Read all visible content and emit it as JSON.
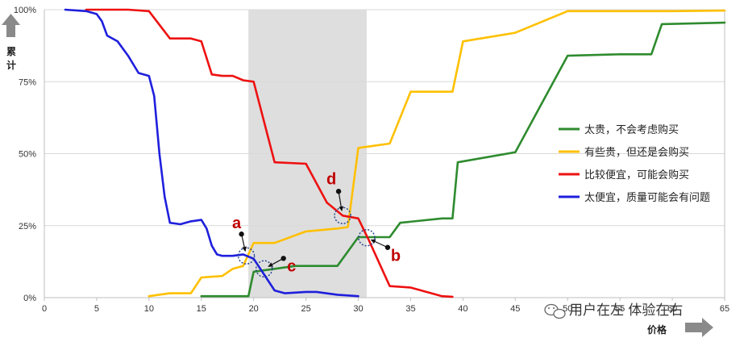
{
  "chart_data": {
    "type": "line",
    "title": "",
    "xlabel": "价格",
    "ylabel": "累计",
    "xlim": [
      0,
      65
    ],
    "ylim": [
      0,
      100
    ],
    "x_ticks": [
      0,
      5,
      10,
      15,
      20,
      25,
      30,
      35,
      40,
      45,
      50,
      55,
      60,
      65
    ],
    "x_tick_labels": [
      "0",
      "5",
      "10",
      "15",
      "20",
      "25",
      "30",
      "35",
      "40",
      "45",
      "50",
      "55",
      "60",
      "65"
    ],
    "y_ticks": [
      0,
      25,
      50,
      75,
      100
    ],
    "y_tick_labels": [
      "0%",
      "25%",
      "50%",
      "75%",
      "100%"
    ],
    "shaded_range": [
      19.5,
      30.8
    ],
    "legend_position": "right",
    "series": [
      {
        "name": "太贵，不会考虑购买",
        "color": "#2e8b2e",
        "points": [
          [
            15,
            0.5
          ],
          [
            19.5,
            0.5
          ],
          [
            20,
            9
          ],
          [
            22,
            10
          ],
          [
            24,
            11
          ],
          [
            28,
            11
          ],
          [
            30,
            21
          ],
          [
            33,
            21
          ],
          [
            34,
            26
          ],
          [
            38,
            27.5
          ],
          [
            39,
            27.5
          ],
          [
            39.5,
            47
          ],
          [
            45,
            50.5
          ],
          [
            50,
            84
          ],
          [
            55,
            84.5
          ],
          [
            58,
            84.5
          ],
          [
            59,
            95
          ],
          [
            65,
            95.5
          ]
        ]
      },
      {
        "name": "有些贵，但还是会购买",
        "color": "#ffc000",
        "points": [
          [
            10,
            0.5
          ],
          [
            12,
            1.5
          ],
          [
            14,
            1.5
          ],
          [
            15,
            7
          ],
          [
            17,
            7.5
          ],
          [
            18,
            10
          ],
          [
            19,
            11
          ],
          [
            20,
            19
          ],
          [
            22,
            19
          ],
          [
            25,
            23
          ],
          [
            28,
            24
          ],
          [
            29,
            24.5
          ],
          [
            30,
            52
          ],
          [
            33,
            53.5
          ],
          [
            35,
            71.5
          ],
          [
            39,
            71.5
          ],
          [
            40,
            89
          ],
          [
            45,
            92
          ],
          [
            50,
            99.5
          ],
          [
            60,
            99.5
          ],
          [
            65,
            99.7
          ]
        ]
      },
      {
        "name": "比较便宜，可能会购买",
        "color": "#ee1111",
        "points": [
          [
            4,
            100
          ],
          [
            8,
            100
          ],
          [
            10,
            99.5
          ],
          [
            12,
            90
          ],
          [
            14,
            90
          ],
          [
            15,
            89
          ],
          [
            16,
            77.5
          ],
          [
            17,
            77
          ],
          [
            18,
            77
          ],
          [
            19,
            75.5
          ],
          [
            20,
            75
          ],
          [
            22,
            47
          ],
          [
            25,
            46.5
          ],
          [
            27,
            33
          ],
          [
            28.5,
            28.5
          ],
          [
            30,
            27.5
          ],
          [
            31,
            20
          ],
          [
            33,
            4
          ],
          [
            35,
            3.5
          ],
          [
            37,
            1.5
          ],
          [
            38,
            0.5
          ],
          [
            39,
            0.3
          ]
        ]
      },
      {
        "name": "太便宜，质量可能会有问题",
        "color": "#1f1fdd",
        "points": [
          [
            2,
            100
          ],
          [
            4,
            99.5
          ],
          [
            5,
            98.5
          ],
          [
            5.5,
            96
          ],
          [
            6,
            91
          ],
          [
            7,
            89
          ],
          [
            8,
            84
          ],
          [
            9,
            78
          ],
          [
            10,
            77
          ],
          [
            10.5,
            70
          ],
          [
            11,
            50
          ],
          [
            11.5,
            35
          ],
          [
            12,
            26
          ],
          [
            13,
            25.5
          ],
          [
            14,
            26.5
          ],
          [
            15,
            27
          ],
          [
            15.5,
            24
          ],
          [
            16,
            18
          ],
          [
            16.5,
            15
          ],
          [
            17,
            14.5
          ],
          [
            18,
            14.5
          ],
          [
            19,
            15
          ],
          [
            20,
            13.5
          ],
          [
            21,
            8
          ],
          [
            22,
            2.5
          ],
          [
            23,
            1.5
          ],
          [
            25,
            2
          ],
          [
            26,
            2
          ],
          [
            28,
            1
          ],
          [
            30,
            0.5
          ]
        ]
      }
    ],
    "annotations": [
      {
        "label": "a",
        "x": 19.3,
        "y": 14.5
      },
      {
        "label": "b",
        "x": 30.8,
        "y": 20.8
      },
      {
        "label": "c",
        "x": 21,
        "y": 10
      },
      {
        "label": "d",
        "x": 28.5,
        "y": 28.5
      }
    ]
  },
  "watermark": "用户在左 体验在右"
}
